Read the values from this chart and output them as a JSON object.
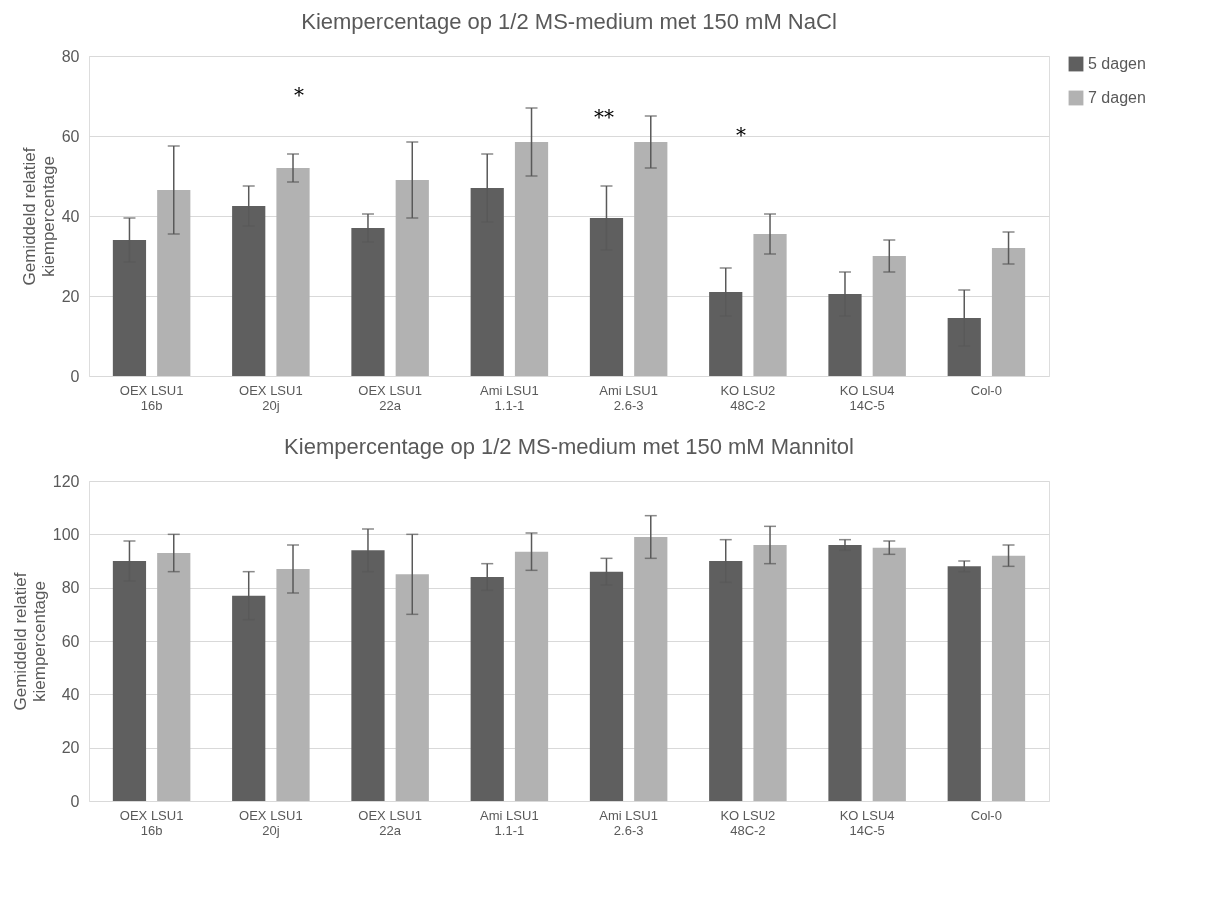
{
  "chart_data": [
    {
      "type": "bar",
      "title": "Kiempercentage op 1/2 MS-medium met 150 mM NaCl",
      "ylabel": "Gemiddeld relatief kiempercentage",
      "categories": [
        "OEX LSU1 16b",
        "OEX LSU1 20j",
        "OEX LSU1 22a",
        "Ami LSU1 1.1-1",
        "Ami LSU1 2.6-3",
        "KO LSU2 48C-2",
        "KO LSU4 14C-5",
        "Col-0"
      ],
      "series": [
        {
          "name": "5 dagen",
          "color": "#5f5f5f",
          "values": [
            34,
            42.5,
            37,
            47,
            39.5,
            21,
            20.5,
            14.5
          ],
          "errors": [
            5.5,
            5,
            3.5,
            8.5,
            8,
            6,
            5.5,
            7
          ]
        },
        {
          "name": "7 dagen",
          "color": "#b2b2b2",
          "values": [
            46.5,
            52,
            49,
            58.5,
            58.5,
            35.5,
            30,
            32
          ],
          "errors": [
            11,
            3.5,
            9.5,
            8.5,
            6.5,
            5,
            4,
            4
          ]
        }
      ],
      "ylim": [
        0,
        80
      ],
      "yticks": [
        0,
        20,
        40,
        60,
        80
      ],
      "grid": "y",
      "legend": "right",
      "annotations": [
        "*",
        "**",
        "*"
      ]
    },
    {
      "type": "bar",
      "title": "Kiempercentage op 1/2 MS-medium met 150 mM Mannitol",
      "ylabel": "Gemiddeld relatief kiempercentage",
      "categories": [
        "OEX LSU1 16b",
        "OEX LSU1 20j",
        "OEX LSU1 22a",
        "Ami LSU1 1.1-1",
        "Ami LSU1 2.6-3",
        "KO LSU2 48C-2",
        "KO LSU4 14C-5",
        "Col-0"
      ],
      "series": [
        {
          "name": "5 dagen",
          "color": "#5f5f5f",
          "values": [
            90,
            77,
            94,
            84,
            86,
            90,
            96,
            88
          ],
          "errors": [
            7.5,
            9,
            8,
            5,
            5,
            8,
            2,
            2
          ]
        },
        {
          "name": "7 dagen",
          "color": "#b2b2b2",
          "values": [
            93,
            87,
            85,
            93.5,
            99,
            96,
            95,
            92
          ],
          "errors": [
            7,
            9,
            15,
            7,
            8,
            7,
            2.5,
            4
          ]
        }
      ],
      "ylim": [
        0,
        120
      ],
      "yticks": [
        0,
        20,
        40,
        60,
        80,
        100,
        120
      ],
      "grid": "y",
      "legend": "right"
    }
  ]
}
